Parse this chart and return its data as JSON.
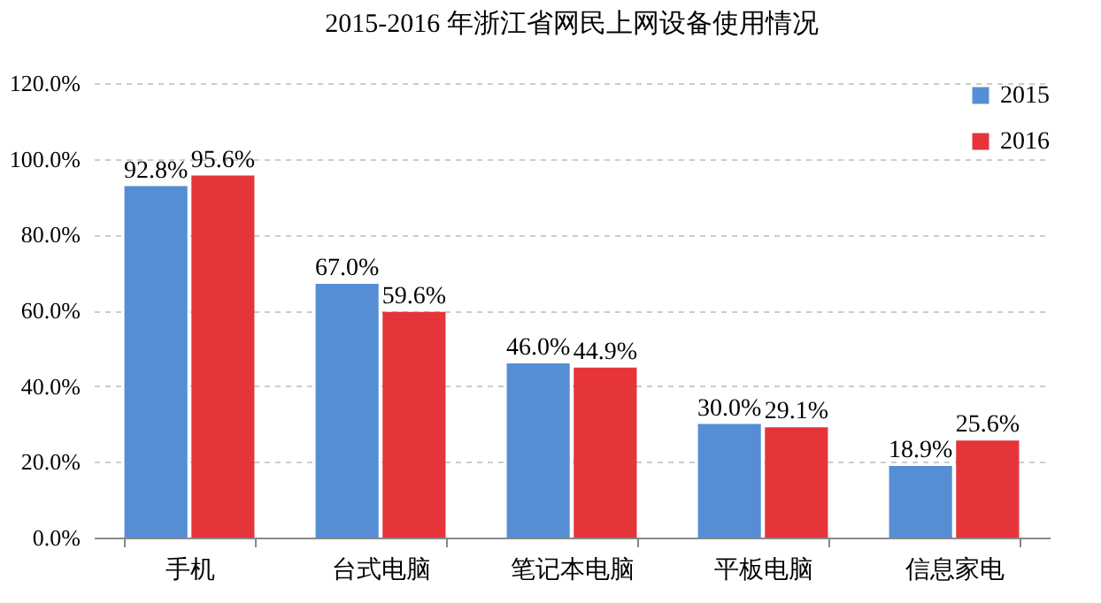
{
  "chart_data": {
    "type": "bar",
    "title": "2015-2016 年浙江省网民上网设备使用情况",
    "categories": [
      "手机",
      "台式电脑",
      "笔记本电脑",
      "平板电脑",
      "信息家电"
    ],
    "series": [
      {
        "name": "2015",
        "color": "#558ed5",
        "values": [
          92.8,
          67.0,
          46.0,
          30.0,
          18.9
        ],
        "value_labels": [
          "92.8%",
          "67.0%",
          "46.0%",
          "30.0%",
          "18.9%"
        ]
      },
      {
        "name": "2016",
        "color": "#e5343a",
        "values": [
          95.6,
          59.6,
          44.9,
          29.1,
          25.6
        ],
        "value_labels": [
          "95.6%",
          "59.6%",
          "44.9%",
          "29.1%",
          "25.6%"
        ]
      }
    ],
    "ylim": [
      0,
      120
    ],
    "yticks": [
      {
        "value": 0,
        "label": "0.0%"
      },
      {
        "value": 20,
        "label": "20.0%"
      },
      {
        "value": 40,
        "label": "40.0%"
      },
      {
        "value": 60,
        "label": "60.0%"
      },
      {
        "value": 80,
        "label": "80.0%"
      },
      {
        "value": 100,
        "label": "100.0%"
      },
      {
        "value": 120,
        "label": "120.0%"
      }
    ],
    "grid": "y",
    "legend": "top right"
  }
}
